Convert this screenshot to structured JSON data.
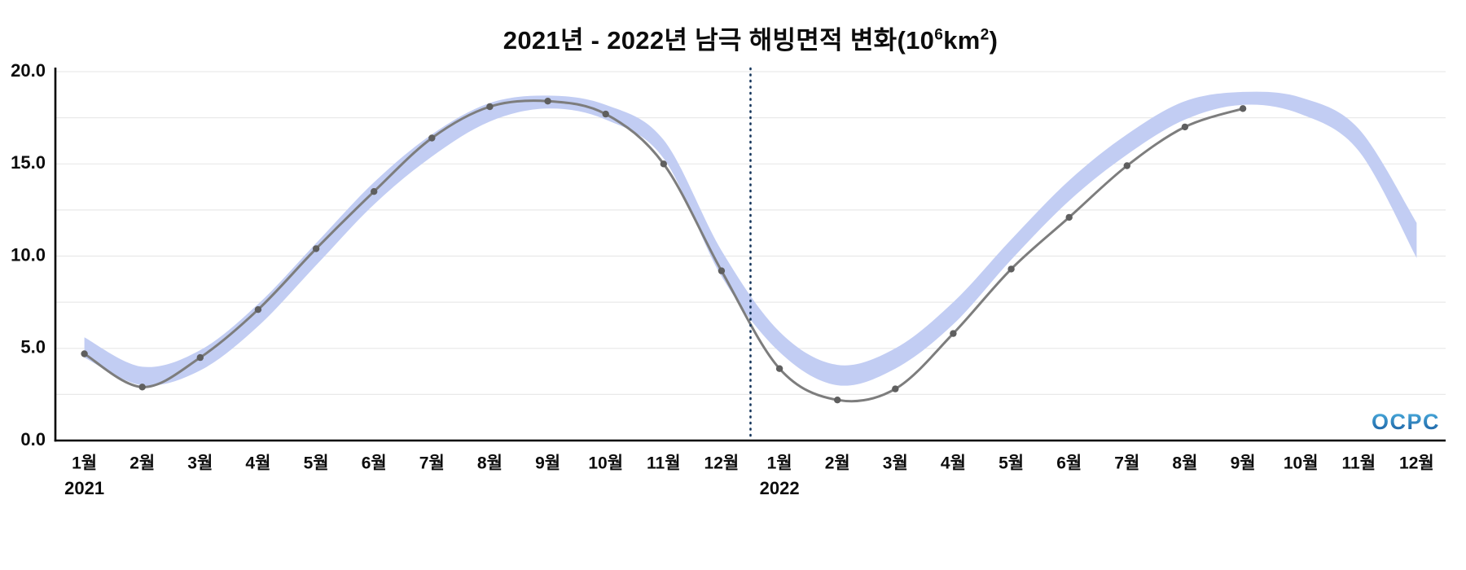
{
  "page": {
    "title_parts": {
      "prefix": "2021년 - 2022년 남극 해빙면적 변화(10",
      "sup1": "6",
      "mid": "km",
      "sup2": "2",
      "suffix": ")"
    },
    "logo_text": "OCPC"
  },
  "chart_data": {
    "type": "line",
    "title": "2021년 - 2022년 남극 해빙면적 변화(10⁶km²)",
    "xlabel": "",
    "ylabel": "",
    "ylim": [
      0,
      20
    ],
    "yticks": [
      0,
      5,
      10,
      15,
      20
    ],
    "ytick_labels": [
      "0.0",
      "5.0",
      "10.0",
      "15.0",
      "20.0"
    ],
    "minor_grid_step": 2.5,
    "grid": true,
    "legend_position": "none",
    "categories": [
      "1월",
      "2월",
      "3월",
      "4월",
      "5월",
      "6월",
      "7월",
      "8월",
      "9월",
      "10월",
      "11월",
      "12월",
      "1월",
      "2월",
      "3월",
      "4월",
      "5월",
      "6월",
      "7월",
      "8월",
      "9월",
      "10월",
      "11월",
      "12월"
    ],
    "year_labels": [
      {
        "text": "2021",
        "index": 0
      },
      {
        "text": "2022",
        "index": 12
      }
    ],
    "separator_after_index": 11,
    "series": [
      {
        "name": "observed-sea-ice-extent",
        "type": "line",
        "color": "#7d7d7d",
        "marker_color": "#5f5f5f",
        "values": [
          4.7,
          2.9,
          4.5,
          7.1,
          10.4,
          13.5,
          16.4,
          18.1,
          18.4,
          17.7,
          15.0,
          9.2,
          3.9,
          2.2,
          2.8,
          5.8,
          9.3,
          12.1,
          14.9,
          17.0,
          18.0,
          null,
          null,
          null
        ]
      },
      {
        "name": "climatology-band",
        "type": "band",
        "color": "#c2cdf3",
        "lower": [
          4.5,
          3.0,
          3.8,
          6.2,
          9.5,
          12.8,
          15.4,
          17.3,
          18.0,
          17.4,
          15.3,
          8.9,
          4.8,
          3.0,
          3.9,
          6.3,
          9.8,
          13.0,
          15.5,
          17.4,
          18.2,
          17.7,
          15.7,
          9.9
        ],
        "upper": [
          5.6,
          4.0,
          4.9,
          7.4,
          10.7,
          14.0,
          16.6,
          18.3,
          18.7,
          18.2,
          16.3,
          10.3,
          5.9,
          4.1,
          5.0,
          7.5,
          10.9,
          14.1,
          16.6,
          18.4,
          18.9,
          18.6,
          16.9,
          11.8
        ]
      }
    ],
    "colors": {
      "grid": "#e9e9e9",
      "axis": "#000000",
      "separator": "#16365c",
      "logo_top": "#4fb3e2",
      "logo_bottom": "#175a9e"
    }
  }
}
